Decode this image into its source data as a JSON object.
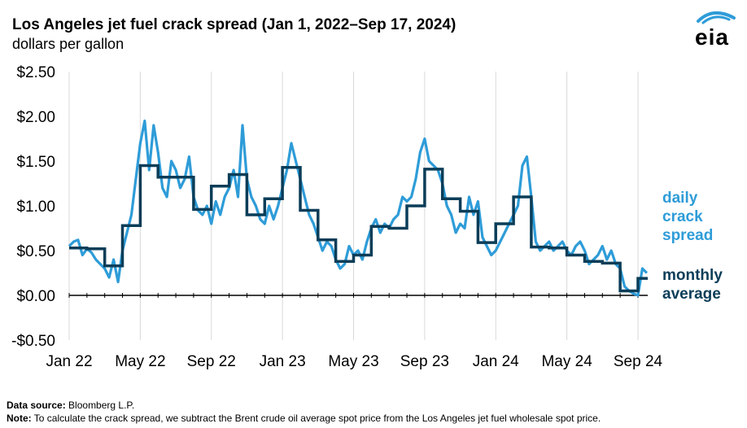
{
  "title": "Los Angeles jet fuel crack spread (Jan 1, 2022–Sep 17, 2024)",
  "subtitle": "dollars per gallon",
  "logo_text": "eia",
  "footer": {
    "source_label": "Data source:",
    "source_text": "Bloomberg L.P.",
    "note_label": "Note:",
    "note_text": "To calculate the crack spread, we subtract the Brent crude oil average spot price from the Los Angeles jet fuel wholesale spot price."
  },
  "colors": {
    "daily": "#2E9CD8",
    "monthly": "#0B3D58",
    "grid": "#d9d9d9",
    "logo_arc": "#2E9CD8"
  },
  "chart_data": {
    "type": "line",
    "title": "Los Angeles jet fuel crack spread (Jan 1, 2022–Sep 17, 2024)",
    "ylabel": "dollars per gallon",
    "ylim": [
      -0.5,
      2.5
    ],
    "y_ticks": [
      2.5,
      2.0,
      1.5,
      1.0,
      0.5,
      0.0,
      -0.5
    ],
    "y_tick_labels": [
      "$2.50",
      "$2.00",
      "$1.50",
      "$1.00",
      "$0.50",
      "$0.00",
      "-$0.50"
    ],
    "x_tick_labels": [
      "Jan 22",
      "May 22",
      "Sep 22",
      "Jan 23",
      "May 23",
      "Sep 23",
      "Jan 24",
      "May 24",
      "Sep 24"
    ],
    "x_unit": "months since Jan 1, 2022",
    "xlim": [
      0,
      32.55
    ],
    "grid": "vertical",
    "legend": [
      {
        "name": "daily crack spread",
        "lines": [
          "daily",
          "crack",
          "spread"
        ]
      },
      {
        "name": "monthly average",
        "lines": [
          "monthly",
          "average"
        ]
      }
    ],
    "series": [
      {
        "name": "daily crack spread",
        "x": [
          0.0,
          0.25,
          0.5,
          0.75,
          1.0,
          1.25,
          1.5,
          1.75,
          2.0,
          2.25,
          2.5,
          2.75,
          3.0,
          3.25,
          3.5,
          3.75,
          4.0,
          4.25,
          4.5,
          4.75,
          5.0,
          5.25,
          5.5,
          5.75,
          6.0,
          6.25,
          6.5,
          6.75,
          7.0,
          7.25,
          7.5,
          7.75,
          8.0,
          8.25,
          8.5,
          8.75,
          9.0,
          9.25,
          9.5,
          9.75,
          10.0,
          10.25,
          10.5,
          10.75,
          11.0,
          11.25,
          11.5,
          11.75,
          12.0,
          12.25,
          12.5,
          12.75,
          13.0,
          13.25,
          13.5,
          13.75,
          14.0,
          14.25,
          14.5,
          14.75,
          15.0,
          15.25,
          15.5,
          15.75,
          16.0,
          16.25,
          16.5,
          16.75,
          17.0,
          17.25,
          17.5,
          17.75,
          18.0,
          18.25,
          18.5,
          18.75,
          19.0,
          19.25,
          19.5,
          19.75,
          20.0,
          20.25,
          20.5,
          20.75,
          21.0,
          21.25,
          21.5,
          21.75,
          22.0,
          22.25,
          22.5,
          22.75,
          23.0,
          23.25,
          23.5,
          23.75,
          24.0,
          24.25,
          24.5,
          24.75,
          25.0,
          25.25,
          25.5,
          25.75,
          26.0,
          26.25,
          26.5,
          26.75,
          27.0,
          27.25,
          27.5,
          27.75,
          28.0,
          28.25,
          28.5,
          28.75,
          29.0,
          29.25,
          29.5,
          29.75,
          30.0,
          30.25,
          30.5,
          30.75,
          31.0,
          31.25,
          31.5,
          31.75,
          32.0,
          32.25,
          32.5
        ],
        "values": [
          0.55,
          0.6,
          0.62,
          0.45,
          0.52,
          0.48,
          0.4,
          0.35,
          0.3,
          0.2,
          0.4,
          0.15,
          0.5,
          0.7,
          0.9,
          1.3,
          1.7,
          1.95,
          1.4,
          1.9,
          1.6,
          1.2,
          1.1,
          1.5,
          1.4,
          1.2,
          1.3,
          1.55,
          1.1,
          0.95,
          0.9,
          1.0,
          0.8,
          1.05,
          0.9,
          1.1,
          1.2,
          1.4,
          1.1,
          1.9,
          1.3,
          1.1,
          1.0,
          0.85,
          0.8,
          1.0,
          0.85,
          1.0,
          1.2,
          1.4,
          1.7,
          1.5,
          1.3,
          1.1,
          0.9,
          0.8,
          0.65,
          0.5,
          0.6,
          0.55,
          0.4,
          0.3,
          0.35,
          0.55,
          0.45,
          0.5,
          0.4,
          0.6,
          0.75,
          0.85,
          0.7,
          0.8,
          0.75,
          0.85,
          0.9,
          1.1,
          1.05,
          1.1,
          1.3,
          1.6,
          1.75,
          1.5,
          1.45,
          1.4,
          1.25,
          1.0,
          0.9,
          0.7,
          0.8,
          0.75,
          1.1,
          0.9,
          1.05,
          0.65,
          0.55,
          0.45,
          0.5,
          0.6,
          0.7,
          0.8,
          0.9,
          1.0,
          1.45,
          1.55,
          1.1,
          0.6,
          0.5,
          0.55,
          0.6,
          0.5,
          0.55,
          0.6,
          0.5,
          0.45,
          0.55,
          0.6,
          0.5,
          0.35,
          0.4,
          0.45,
          0.55,
          0.4,
          0.5,
          0.35,
          0.3,
          0.1,
          0.05,
          0.02,
          0.0,
          0.3,
          0.25
        ]
      },
      {
        "name": "monthly average",
        "months": [
          "Jan 22",
          "Feb 22",
          "Mar 22",
          "Apr 22",
          "May 22",
          "Jun 22",
          "Jul 22",
          "Aug 22",
          "Sep 22",
          "Oct 22",
          "Nov 22",
          "Dec 22",
          "Jan 23",
          "Feb 23",
          "Mar 23",
          "Apr 23",
          "May 23",
          "Jun 23",
          "Jul 23",
          "Aug 23",
          "Sep 23",
          "Oct 23",
          "Nov 23",
          "Dec 23",
          "Jan 24",
          "Feb 24",
          "Mar 24",
          "Apr 24",
          "May 24",
          "Jun 24",
          "Jul 24",
          "Aug 24",
          "Sep 24"
        ],
        "values": [
          0.53,
          0.52,
          0.33,
          0.78,
          1.45,
          1.32,
          1.32,
          0.96,
          1.22,
          1.35,
          0.9,
          1.08,
          1.43,
          0.95,
          0.62,
          0.38,
          0.45,
          0.77,
          0.75,
          1.0,
          1.41,
          1.08,
          0.94,
          0.59,
          0.8,
          1.1,
          0.54,
          0.53,
          0.45,
          0.38,
          0.36,
          0.05,
          0.19
        ]
      }
    ]
  }
}
